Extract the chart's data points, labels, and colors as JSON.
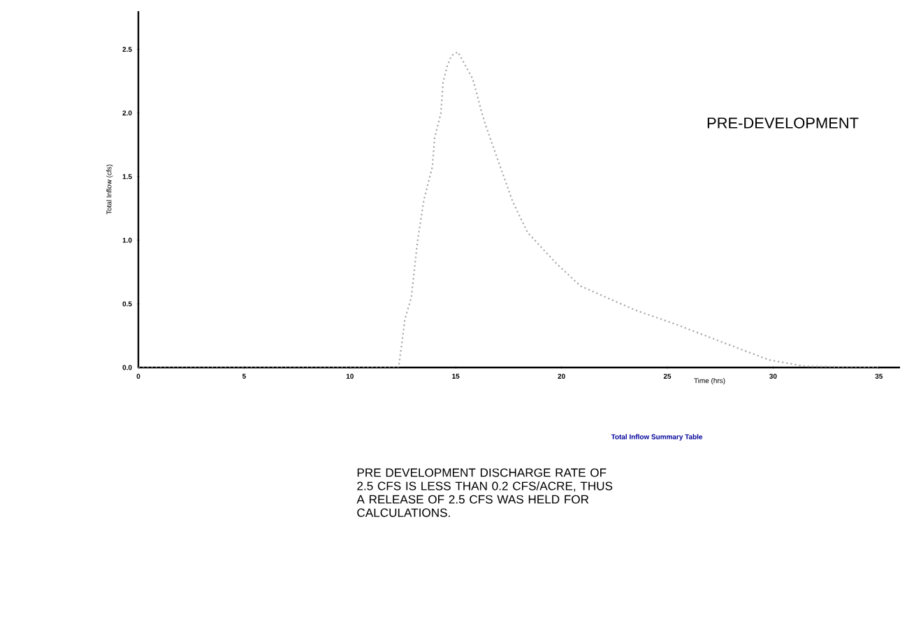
{
  "chart_data": {
    "type": "line",
    "xlabel": "Time (hrs)",
    "ylabel": "Total Inflow (cfs)",
    "x": [
      0,
      12.3,
      12.5,
      12.6,
      12.9,
      13.2,
      13.5,
      13.9,
      14.0,
      14.3,
      14.4,
      14.6,
      14.8,
      15.1,
      15.8,
      16.0,
      16.2,
      16.4,
      17.1,
      17.7,
      18.4,
      19.8,
      20.9,
      23.5,
      25.4,
      27.9,
      29.8,
      31.5,
      35
    ],
    "series": [
      {
        "color": "#a8a8a8",
        "values": [
          0,
          0,
          0.25,
          0.38,
          0.55,
          1.0,
          1.32,
          1.58,
          1.8,
          2.0,
          2.24,
          2.37,
          2.45,
          2.48,
          2.27,
          2.15,
          2.02,
          1.91,
          1.58,
          1.3,
          1.06,
          0.81,
          0.64,
          0.45,
          0.34,
          0.18,
          0.06,
          0.01,
          0
        ]
      }
    ],
    "xlim": [
      0,
      36
    ],
    "ylim": [
      0,
      2.8
    ],
    "xticks": [
      0,
      5,
      10,
      15,
      20,
      25,
      30,
      35
    ],
    "yticks": [
      {
        "value": 0,
        "label": "0.0"
      },
      {
        "value": 0.5,
        "label": "0.5"
      },
      {
        "value": 1,
        "label": "1.0"
      },
      {
        "value": 1.5,
        "label": "1.5"
      },
      {
        "value": 2,
        "label": "2.0"
      },
      {
        "value": 2.5,
        "label": "2.5"
      }
    ],
    "marker": "none",
    "line_style": "dotted",
    "grid": false,
    "annotations": [
      "PRE-DEVELOPMENT",
      "Total Inflow Summary Table",
      "PRE DEVELOPMENT DISCHARGE RATE OF 2.5 CFS IS LESS THAN 0.2 CFS/ACRE, THUS A RELEASE OF 2.5 CFS WAS HELD FOR CALCULATIONS."
    ]
  }
}
